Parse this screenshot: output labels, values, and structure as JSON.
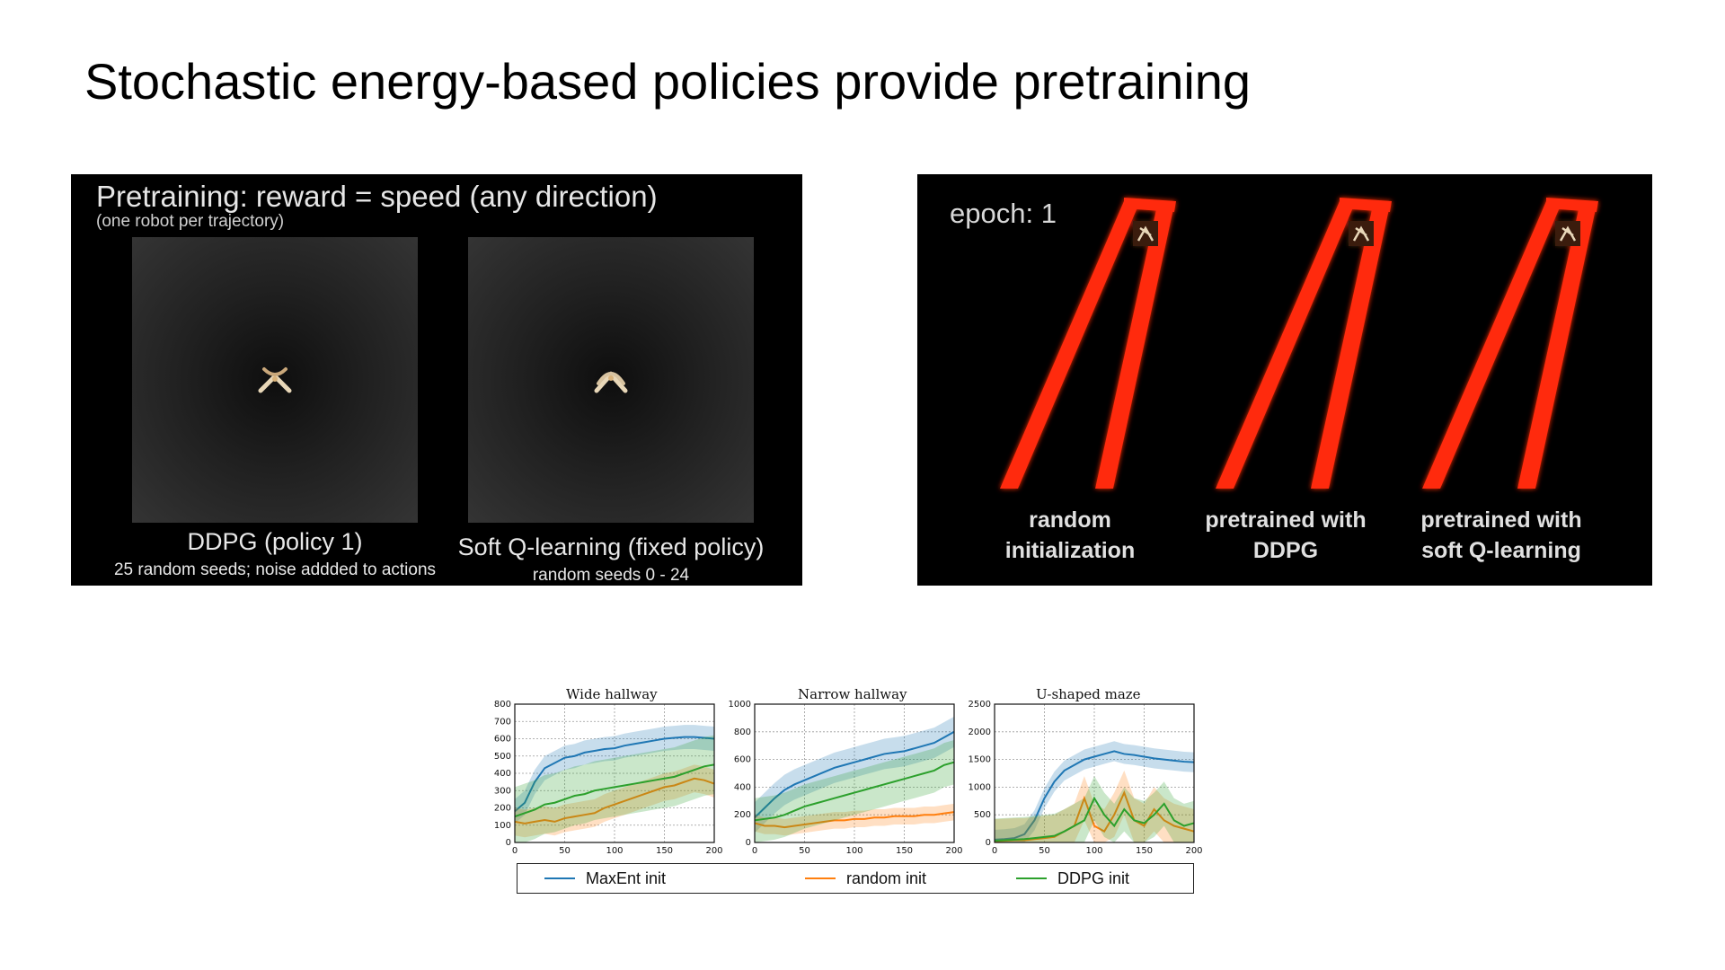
{
  "slide": {
    "title": "Stochastic energy-based policies provide pretraining"
  },
  "left_panel": {
    "heading": "Pretraining: reward = speed (any direction)",
    "subheading": "(one robot per trajectory)",
    "left_caption": "DDPG (policy 1)",
    "left_subcaption": "25 random seeds; noise addded to actions",
    "right_caption": "Soft Q-learning (fixed policy)",
    "right_subcaption": "random seeds 0 - 24"
  },
  "right_panel": {
    "epoch_label": "epoch: 1",
    "track_color": "#ff2a10",
    "labels": [
      "random\ninitialization",
      "pretrained with\nDDPG",
      "pretrained with\nsoft Q-learning"
    ]
  },
  "legend": {
    "items": [
      {
        "label": "MaxEnt init",
        "color": "#1f77b4"
      },
      {
        "label": "random init",
        "color": "#ff7f0e"
      },
      {
        "label": "DDPG init",
        "color": "#2ca02c"
      }
    ]
  },
  "chart_data": [
    {
      "type": "line",
      "title": "Wide hallway",
      "x": [
        0,
        10,
        20,
        30,
        40,
        50,
        60,
        70,
        80,
        90,
        100,
        110,
        120,
        130,
        140,
        150,
        160,
        170,
        180,
        190,
        200
      ],
      "xticks": [
        0,
        50,
        100,
        150,
        200
      ],
      "ylim": [
        0,
        800
      ],
      "yticks": [
        0,
        100,
        200,
        300,
        400,
        500,
        600,
        700,
        800
      ],
      "grid": true,
      "series": [
        {
          "name": "MaxEnt init",
          "values": [
            180,
            230,
            350,
            430,
            460,
            490,
            500,
            520,
            530,
            540,
            545,
            560,
            570,
            580,
            590,
            600,
            605,
            610,
            610,
            605,
            600
          ],
          "band": 70
        },
        {
          "name": "random init",
          "values": [
            120,
            110,
            120,
            130,
            120,
            140,
            150,
            160,
            170,
            200,
            220,
            240,
            260,
            280,
            300,
            320,
            330,
            350,
            370,
            360,
            340
          ],
          "band": 80
        },
        {
          "name": "DDPG init",
          "values": [
            150,
            170,
            190,
            220,
            230,
            250,
            270,
            280,
            300,
            310,
            320,
            330,
            340,
            350,
            360,
            370,
            380,
            400,
            420,
            440,
            450
          ],
          "band": 170
        }
      ]
    },
    {
      "type": "line",
      "title": "Narrow hallway",
      "x": [
        0,
        10,
        20,
        30,
        40,
        50,
        60,
        70,
        80,
        90,
        100,
        110,
        120,
        130,
        140,
        150,
        160,
        170,
        180,
        190,
        200
      ],
      "xticks": [
        0,
        50,
        100,
        150,
        200
      ],
      "ylim": [
        0,
        1000
      ],
      "yticks": [
        0,
        200,
        400,
        600,
        800,
        1000
      ],
      "grid": true,
      "series": [
        {
          "name": "MaxEnt init",
          "values": [
            180,
            250,
            320,
            380,
            420,
            450,
            480,
            510,
            540,
            560,
            580,
            600,
            620,
            640,
            650,
            660,
            680,
            700,
            720,
            760,
            800
          ],
          "band": 110
        },
        {
          "name": "random init",
          "values": [
            140,
            120,
            120,
            110,
            120,
            130,
            140,
            150,
            160,
            160,
            170,
            170,
            180,
            180,
            190,
            190,
            190,
            200,
            200,
            210,
            220
          ],
          "band": 60
        },
        {
          "name": "DDPG init",
          "values": [
            160,
            170,
            180,
            200,
            230,
            260,
            280,
            300,
            320,
            340,
            360,
            380,
            400,
            420,
            440,
            460,
            480,
            500,
            520,
            560,
            580
          ],
          "band": 160
        }
      ]
    },
    {
      "type": "line",
      "title": "U-shaped maze",
      "x": [
        0,
        10,
        20,
        30,
        40,
        50,
        60,
        70,
        80,
        90,
        100,
        110,
        120,
        130,
        140,
        150,
        160,
        170,
        180,
        190,
        200
      ],
      "xticks": [
        0,
        50,
        100,
        150,
        200
      ],
      "ylim": [
        0,
        2500
      ],
      "yticks": [
        0,
        500,
        1000,
        1500,
        2000,
        2500
      ],
      "grid": true,
      "series": [
        {
          "name": "MaxEnt init",
          "values": [
            50,
            60,
            80,
            150,
            400,
            800,
            1100,
            1300,
            1400,
            1500,
            1550,
            1600,
            1650,
            1600,
            1580,
            1550,
            1520,
            1500,
            1480,
            1460,
            1450
          ],
          "band": 180
        },
        {
          "name": "random init",
          "values": [
            20,
            30,
            40,
            40,
            60,
            80,
            100,
            200,
            300,
            800,
            300,
            200,
            500,
            900,
            400,
            300,
            600,
            400,
            300,
            250,
            200
          ],
          "band": 400
        },
        {
          "name": "DDPG init",
          "values": [
            30,
            40,
            50,
            60,
            80,
            100,
            120,
            200,
            300,
            400,
            800,
            500,
            300,
            600,
            400,
            350,
            500,
            700,
            400,
            300,
            350
          ],
          "band": 400
        }
      ]
    }
  ]
}
